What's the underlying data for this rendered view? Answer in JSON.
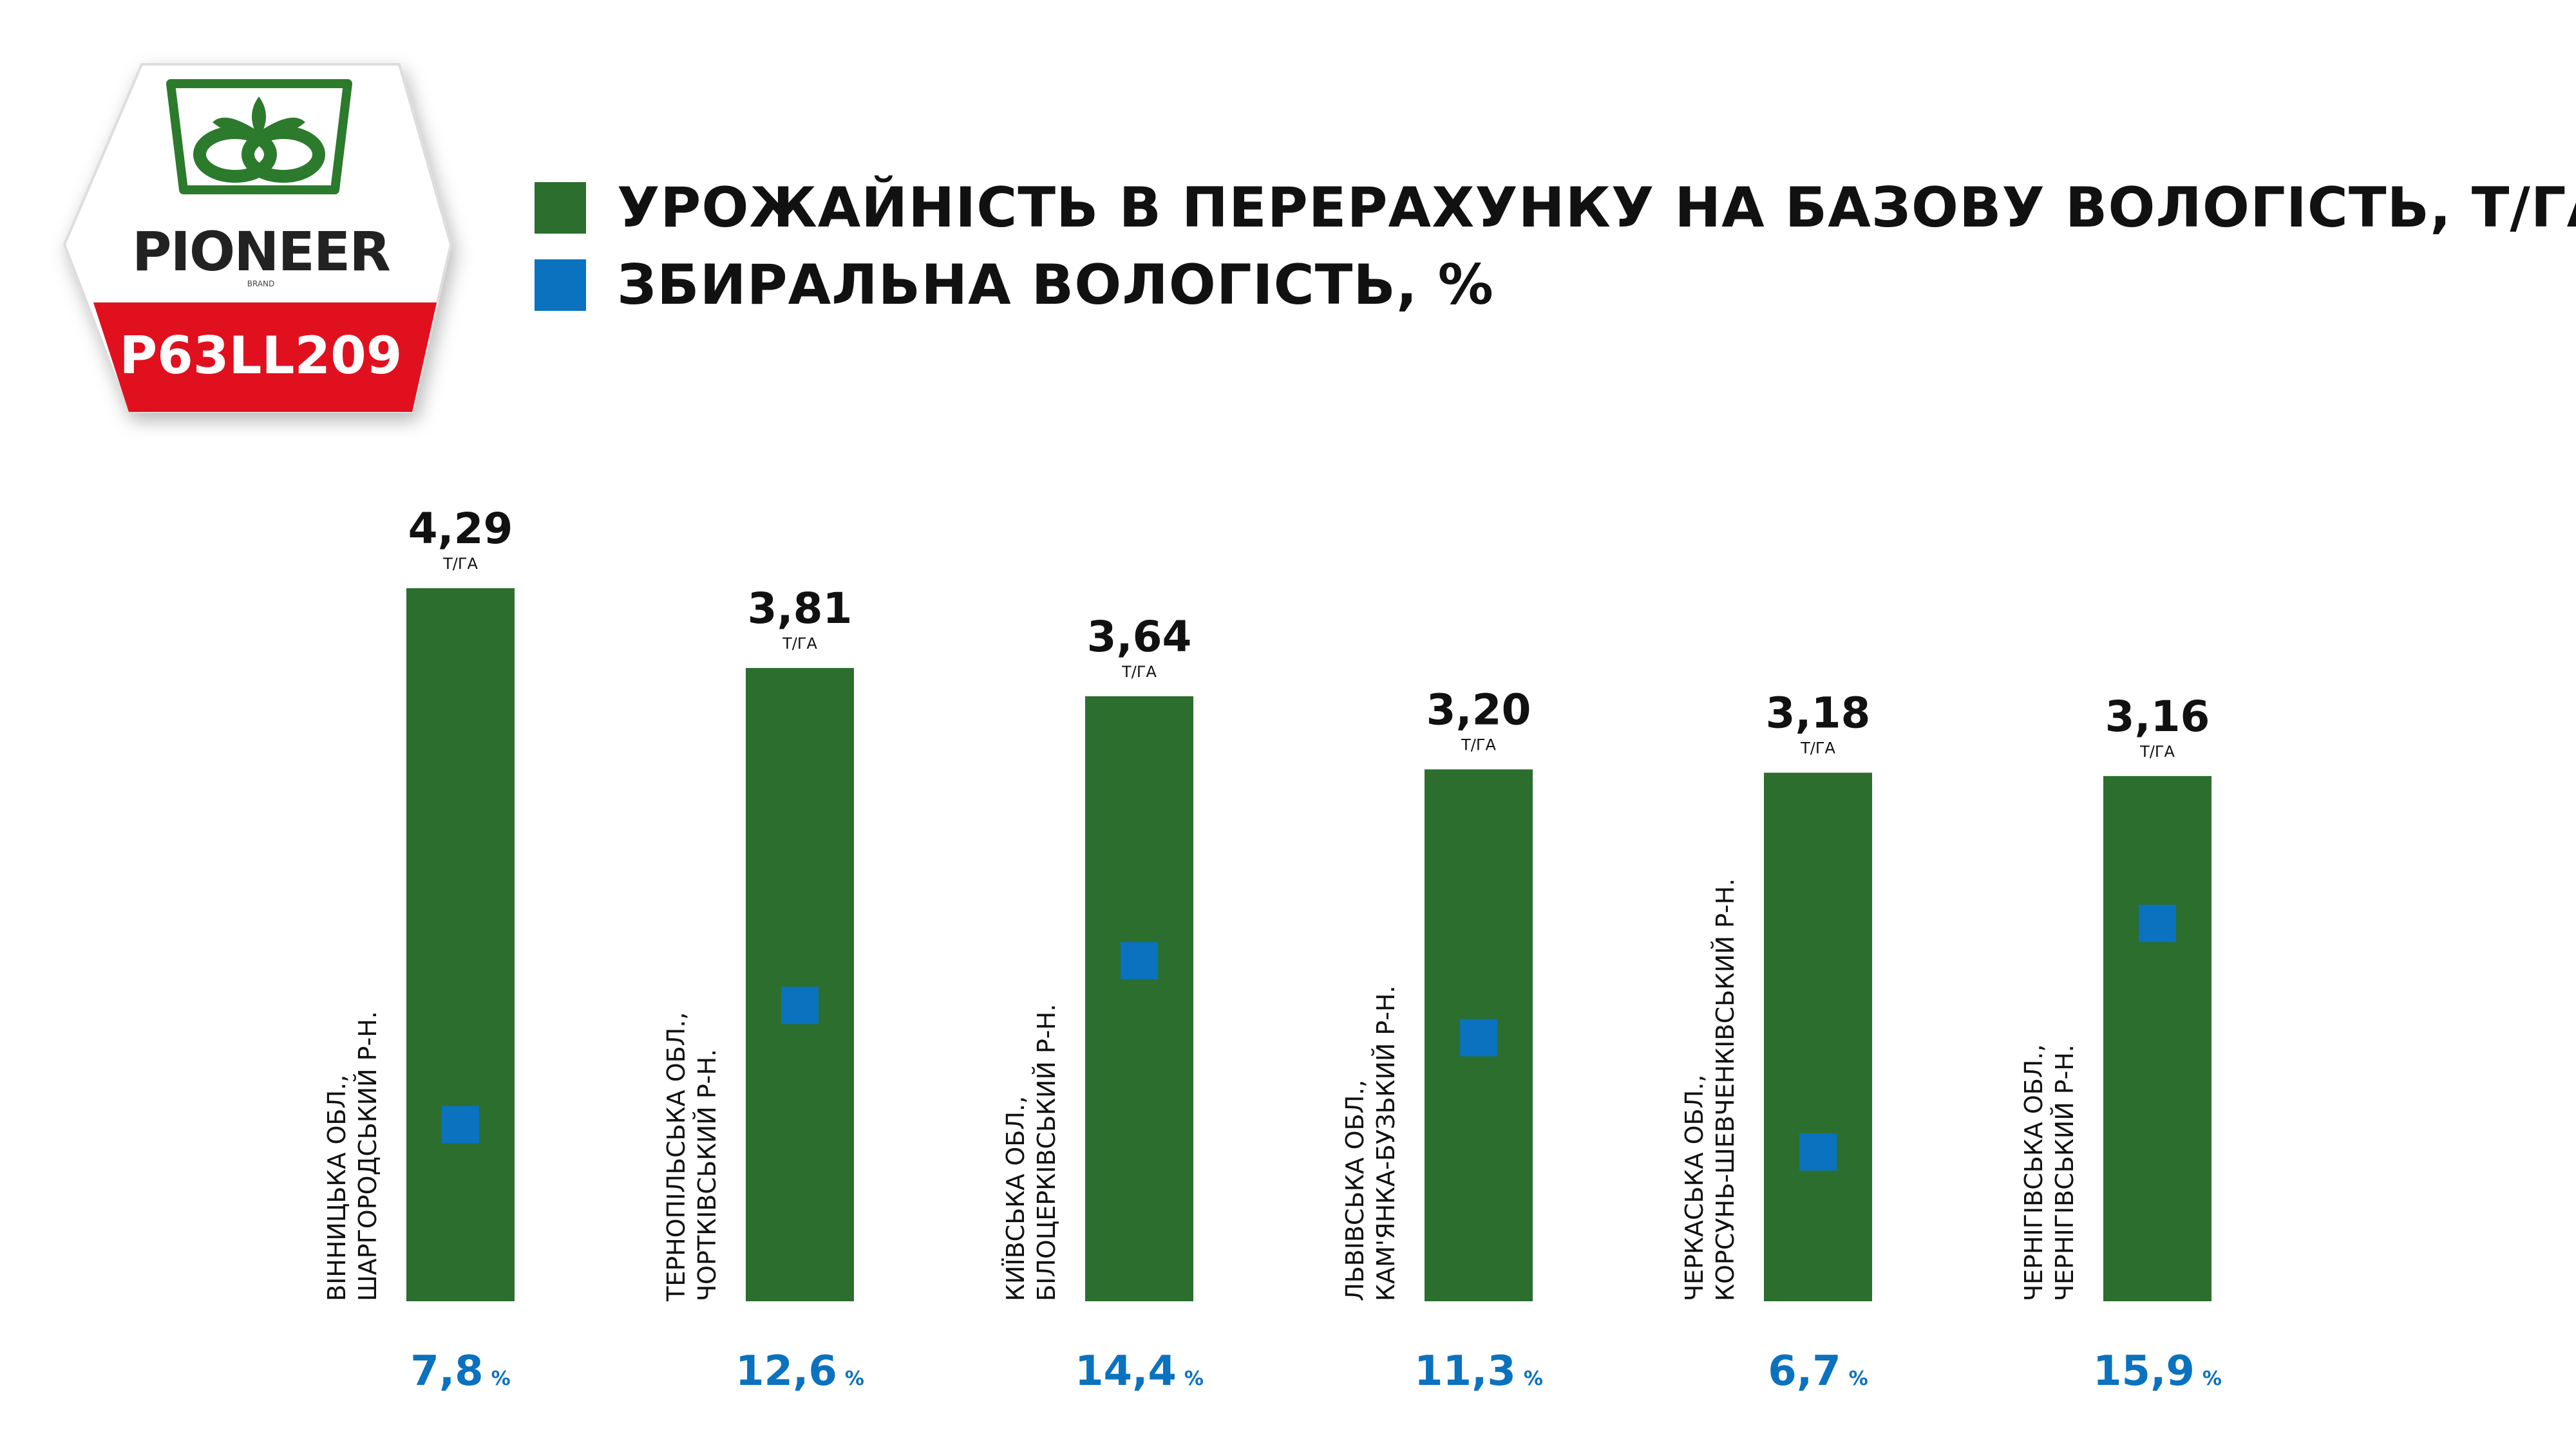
{
  "logo": {
    "brand": "PIONEER",
    "brand_sub": "BRAND",
    "product": "P63LL209",
    "emblem": "pioneer-sprout-icon"
  },
  "colors": {
    "bar": "#2b6e2e",
    "marker": "#0a72be",
    "logo_red": "#e0101f",
    "logo_green": "#2c7a2c",
    "text": "#111111"
  },
  "legend": [
    {
      "label": "УРОЖАЙНІСТЬ В ПЕРЕРАХУНКУ НА БАЗОВУ ВОЛОГІСТЬ, Т/ГА",
      "color": "#2b6e2e"
    },
    {
      "label": "ЗБИРАЛЬНА ВОЛОГІСТЬ, %",
      "color": "#0a72be"
    }
  ],
  "chart_data": {
    "type": "bar",
    "title": "",
    "xlabel": "",
    "ylabel": "",
    "yield_unit": "Т/ГА",
    "moisture_unit": "%",
    "categories": [
      [
        "ВІННИЦЬКА ОБЛ.,",
        "ШАРГОРОДСЬКИЙ Р-Н."
      ],
      [
        "ТЕРНОПІЛЬСЬКА ОБЛ.,",
        "ЧОРТКІВСЬКИЙ Р-Н."
      ],
      [
        "КИЇВСЬКА ОБЛ.,",
        "БІЛОЦЕРКІВСЬКИЙ Р-Н."
      ],
      [
        "ЛЬВІВСЬКА ОБЛ.,",
        "КАМ'ЯНКА-БУЗЬКИЙ Р-Н."
      ],
      [
        "ЧЕРКАСЬКА ОБЛ.,",
        "КОРСУНЬ-ШЕВЧЕНКІВСЬКИЙ Р-Н."
      ],
      [
        "ЧЕРНІГІВСЬКА ОБЛ.,",
        "ЧЕРНІГІВСЬКИЙ Р-Н."
      ]
    ],
    "series": [
      {
        "name": "УРОЖАЙНІСТЬ В ПЕРЕРАХУНКУ НА БАЗОВУ ВОЛОГІСТЬ, Т/ГА",
        "values": [
          4.29,
          3.81,
          3.64,
          3.2,
          3.18,
          3.16
        ],
        "labels": [
          "4,29",
          "3,81",
          "3,64",
          "3,20",
          "3,18",
          "3,16"
        ]
      },
      {
        "name": "ЗБИРАЛЬНА ВОЛОГІСТЬ, %",
        "values": [
          7.8,
          12.6,
          14.4,
          11.3,
          6.7,
          15.9
        ],
        "labels": [
          "7,8",
          "12,6",
          "14,4",
          "11,3",
          "6,7",
          "15,9"
        ]
      }
    ],
    "ylim": [
      0,
      4.29
    ],
    "grid": false,
    "legend_position": "top"
  }
}
